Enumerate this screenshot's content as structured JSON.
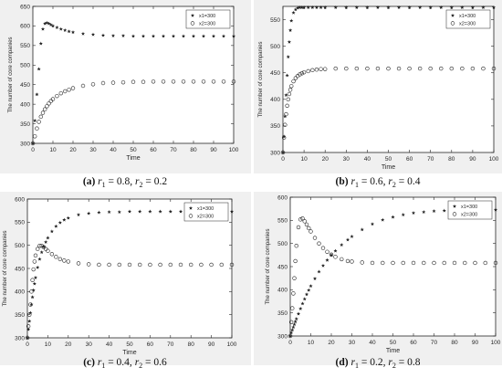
{
  "figure": {
    "panels": [
      {
        "caption_letter": "(a)",
        "caption_math": "r1 = 0.8, r2 = 0.2",
        "caption_parts": {
          "r1_symbol": "r",
          "r1_sub": "1",
          "r1_value": " = 0.8, ",
          "r2_symbol": "r",
          "r2_sub": "2",
          "r2_value": " = 0.2"
        },
        "xlabel": "Time",
        "ylabel": "The number of core companies",
        "legend": [
          "x1=300",
          "x2=300"
        ],
        "x_ticks": [
          "0",
          "10",
          "20",
          "30",
          "40",
          "50",
          "60",
          "70",
          "80",
          "90",
          "100"
        ],
        "y_ticks": [
          "300",
          "350",
          "400",
          "450",
          "500",
          "550",
          "600",
          "650"
        ]
      },
      {
        "caption_letter": "(b)",
        "caption_math": "r1 = 0.6, r2 = 0.4",
        "caption_parts": {
          "r1_symbol": "r",
          "r1_sub": "1",
          "r1_value": " = 0.6, ",
          "r2_symbol": "r",
          "r2_sub": "2",
          "r2_value": " = 0.4"
        },
        "xlabel": "Time",
        "ylabel": "The number of core companies",
        "legend": [
          "x1=300",
          "x2=300"
        ],
        "x_ticks": [
          "0",
          "10",
          "20",
          "30",
          "40",
          "50",
          "60",
          "70",
          "80",
          "90",
          "100"
        ],
        "y_ticks": [
          "300",
          "350",
          "400",
          "450",
          "500",
          "550"
        ]
      },
      {
        "caption_letter": "(c)",
        "caption_math": "r1 = 0.4, r2 = 0.6",
        "caption_parts": {
          "r1_symbol": "r",
          "r1_sub": "1",
          "r1_value": " = 0.4, ",
          "r2_symbol": "r",
          "r2_sub": "2",
          "r2_value": " = 0.6"
        },
        "xlabel": "Time",
        "ylabel": "The number of core companies",
        "legend": [
          "x1=300",
          "x2=300"
        ],
        "x_ticks": [
          "0",
          "10",
          "20",
          "30",
          "40",
          "50",
          "60",
          "70",
          "80",
          "90",
          "100"
        ],
        "y_ticks": [
          "300",
          "350",
          "400",
          "450",
          "500",
          "550",
          "600"
        ]
      },
      {
        "caption_letter": "(d)",
        "caption_math": "r1 = 0.2, r2 = 0.8",
        "caption_parts": {
          "r1_symbol": "r",
          "r1_sub": "1",
          "r1_value": " = 0.2, ",
          "r2_symbol": "r",
          "r2_sub": "2",
          "r2_value": " = 0.8"
        },
        "xlabel": "Time",
        "ylabel": "The number of core companies",
        "legend": [
          "x1=300",
          "x2=300"
        ],
        "x_ticks": [
          "0",
          "10",
          "20",
          "30",
          "40",
          "50",
          "60",
          "70",
          "80",
          "90",
          "100"
        ],
        "y_ticks": [
          "300",
          "350",
          "400",
          "450",
          "500",
          "550",
          "600"
        ]
      }
    ]
  },
  "chart_data": [
    {
      "type": "scatter",
      "xlabel": "Time",
      "ylabel": "The number of core companies",
      "xlim": [
        0,
        100
      ],
      "ylim": [
        300,
        650
      ],
      "legend_position": "top-right",
      "grid": false,
      "series": [
        {
          "name": "x1=300",
          "marker": "star",
          "x": [
            0,
            1,
            2,
            3,
            4,
            5,
            6,
            7,
            8,
            9,
            10,
            12,
            14,
            16,
            18,
            20,
            25,
            30,
            35,
            40,
            45,
            50,
            55,
            60,
            65,
            70,
            75,
            80,
            85,
            90,
            95,
            100
          ],
          "y": [
            300,
            358,
            425,
            490,
            555,
            592,
            606,
            608,
            606,
            603,
            600,
            596,
            592,
            589,
            586,
            584,
            580,
            578,
            576,
            575,
            575,
            574,
            574,
            574,
            574,
            574,
            574,
            574,
            574,
            574,
            574,
            574
          ]
        },
        {
          "name": "x2=300",
          "marker": "circle",
          "x": [
            0,
            1,
            2,
            3,
            4,
            5,
            6,
            7,
            8,
            9,
            10,
            12,
            14,
            16,
            18,
            20,
            25,
            30,
            35,
            40,
            45,
            50,
            55,
            60,
            65,
            70,
            75,
            80,
            85,
            90,
            95,
            100
          ],
          "y": [
            300,
            318,
            338,
            355,
            368,
            378,
            387,
            395,
            402,
            408,
            413,
            421,
            428,
            433,
            437,
            441,
            447,
            451,
            454,
            455,
            456,
            457,
            457,
            458,
            458,
            458,
            458,
            458,
            458,
            458,
            458,
            458
          ]
        }
      ]
    },
    {
      "type": "scatter",
      "xlabel": "Time",
      "ylabel": "The number of core companies",
      "xlim": [
        0,
        100
      ],
      "ylim": [
        300,
        575
      ],
      "legend_position": "top-right",
      "grid": false,
      "series": [
        {
          "name": "x1=300",
          "marker": "star",
          "x": [
            0,
            0.5,
            1,
            1.5,
            2,
            2.5,
            3,
            3.5,
            4,
            5,
            6,
            7,
            8,
            9,
            10,
            12,
            14,
            16,
            18,
            20,
            25,
            30,
            35,
            40,
            45,
            50,
            55,
            60,
            65,
            70,
            75,
            80,
            85,
            90,
            95,
            100
          ],
          "y": [
            300,
            330,
            368,
            408,
            445,
            480,
            508,
            530,
            548,
            563,
            569,
            572,
            573,
            573,
            573,
            573,
            573,
            573,
            573,
            573,
            573,
            573,
            573,
            573,
            573,
            573,
            573,
            573,
            573,
            573,
            573,
            573,
            573,
            573,
            573,
            573
          ]
        },
        {
          "name": "x2=300",
          "marker": "circle",
          "x": [
            0,
            0.5,
            1,
            1.5,
            2,
            2.5,
            3,
            3.5,
            4,
            5,
            6,
            7,
            8,
            9,
            10,
            12,
            14,
            16,
            18,
            20,
            25,
            30,
            35,
            40,
            45,
            50,
            55,
            60,
            65,
            70,
            75,
            80,
            85,
            90,
            95,
            100
          ],
          "y": [
            300,
            328,
            352,
            372,
            388,
            400,
            410,
            418,
            425,
            434,
            440,
            444,
            447,
            449,
            451,
            453,
            455,
            456,
            457,
            457,
            458,
            458,
            458,
            458,
            458,
            458,
            458,
            458,
            458,
            458,
            458,
            458,
            458,
            458,
            458,
            458
          ]
        }
      ]
    },
    {
      "type": "scatter",
      "xlabel": "Time",
      "ylabel": "The number of core companies",
      "xlim": [
        0,
        100
      ],
      "ylim": [
        300,
        600
      ],
      "legend_position": "top-right",
      "grid": false,
      "series": [
        {
          "name": "x1=300",
          "marker": "star",
          "x": [
            0,
            0.5,
            1,
            1.5,
            2,
            2.5,
            3,
            3.5,
            4,
            5,
            6,
            7,
            8,
            9,
            10,
            12,
            14,
            16,
            18,
            20,
            25,
            30,
            35,
            40,
            45,
            50,
            55,
            60,
            65,
            70,
            75,
            80,
            85,
            90,
            95,
            100
          ],
          "y": [
            300,
            318,
            336,
            354,
            372,
            388,
            403,
            417,
            430,
            452,
            470,
            485,
            497,
            507,
            516,
            530,
            541,
            549,
            555,
            559,
            566,
            569,
            571,
            572,
            572,
            573,
            573,
            573,
            573,
            573,
            573,
            573,
            573,
            573,
            573,
            573
          ]
        },
        {
          "name": "x2=300",
          "marker": "circle",
          "x": [
            0,
            0.5,
            1,
            1.5,
            2,
            2.5,
            3,
            3.5,
            4,
            5,
            6,
            7,
            8,
            9,
            10,
            12,
            14,
            16,
            18,
            20,
            25,
            30,
            35,
            40,
            45,
            50,
            55,
            60,
            65,
            70,
            75,
            80,
            85,
            90,
            95,
            100
          ],
          "y": [
            300,
            325,
            350,
            372,
            400,
            425,
            448,
            465,
            478,
            492,
            499,
            499,
            496,
            492,
            488,
            481,
            475,
            470,
            467,
            465,
            461,
            459,
            458,
            458,
            458,
            458,
            458,
            458,
            458,
            458,
            458,
            458,
            458,
            458,
            458,
            458
          ]
        }
      ]
    },
    {
      "type": "scatter",
      "xlabel": "Time",
      "ylabel": "The number of core companies",
      "xlim": [
        0,
        100
      ],
      "ylim": [
        300,
        600
      ],
      "legend_position": "top-right",
      "grid": false,
      "series": [
        {
          "name": "x1=300",
          "marker": "star",
          "x": [
            0,
            0.5,
            1,
            1.5,
            2,
            2.5,
            3,
            4,
            5,
            6,
            7,
            8,
            9,
            10,
            12,
            14,
            16,
            18,
            20,
            22,
            25,
            28,
            30,
            35,
            40,
            45,
            50,
            55,
            60,
            65,
            70,
            75,
            80,
            85,
            90,
            95,
            100
          ],
          "y": [
            300,
            307,
            313,
            319,
            325,
            331,
            337,
            348,
            359,
            370,
            380,
            390,
            399,
            408,
            424,
            439,
            452,
            464,
            475,
            484,
            497,
            508,
            515,
            530,
            542,
            551,
            557,
            562,
            566,
            568,
            570,
            571,
            572,
            572,
            573,
            573,
            573
          ]
        },
        {
          "name": "x2=300",
          "marker": "circle",
          "x": [
            0,
            0.5,
            1,
            1.5,
            2,
            2.5,
            3,
            4,
            5,
            6,
            7,
            8,
            9,
            10,
            12,
            14,
            16,
            18,
            20,
            22,
            25,
            28,
            30,
            35,
            40,
            45,
            50,
            55,
            60,
            65,
            70,
            75,
            80,
            85,
            90,
            95,
            100
          ],
          "y": [
            300,
            330,
            360,
            392,
            425,
            462,
            495,
            535,
            552,
            554,
            548,
            541,
            533,
            526,
            512,
            500,
            490,
            482,
            476,
            471,
            466,
            462,
            461,
            459,
            458,
            458,
            458,
            458,
            458,
            458,
            458,
            458,
            458,
            458,
            458,
            458,
            458
          ]
        }
      ]
    }
  ]
}
